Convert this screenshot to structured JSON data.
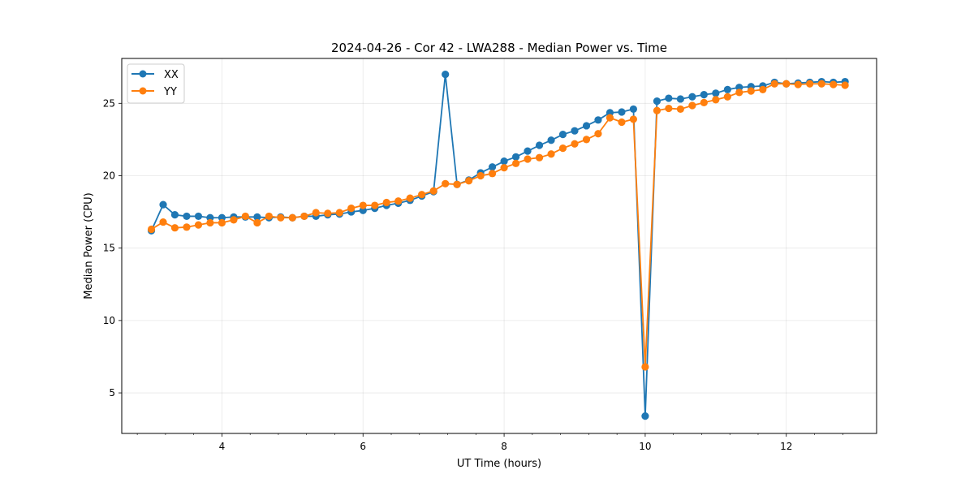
{
  "chart_data": {
    "type": "line",
    "title": "2024-04-26 - Cor 42 - LWA288 - Median Power vs. Time",
    "xlabel": "UT Time (hours)",
    "ylabel": "Median Power (CPU)",
    "xlim": [
      2.58,
      13.28
    ],
    "ylim": [
      2.2,
      28.1
    ],
    "xticks": [
      4,
      6,
      8,
      10,
      12
    ],
    "yticks": [
      5,
      10,
      15,
      20,
      25
    ],
    "xtick_labels": [
      "4",
      "6",
      "8",
      "10",
      "12"
    ],
    "ytick_labels": [
      "5",
      "10",
      "15",
      "20",
      "25"
    ],
    "grid": true,
    "legend_position": "upper-left",
    "marker": "circle",
    "x": [
      3.0,
      3.167,
      3.333,
      3.5,
      3.667,
      3.833,
      4.0,
      4.167,
      4.333,
      4.5,
      4.667,
      4.833,
      5.0,
      5.167,
      5.333,
      5.5,
      5.667,
      5.833,
      6.0,
      6.167,
      6.333,
      6.5,
      6.667,
      6.833,
      7.0,
      7.167,
      7.333,
      7.5,
      7.667,
      7.833,
      8.0,
      8.167,
      8.333,
      8.5,
      8.667,
      8.833,
      9.0,
      9.167,
      9.333,
      9.5,
      9.667,
      9.833,
      10.0,
      10.167,
      10.333,
      10.5,
      10.667,
      10.833,
      11.0,
      11.167,
      11.333,
      11.5,
      11.667,
      11.833,
      12.0,
      12.167,
      12.333,
      12.5,
      12.667,
      12.833
    ],
    "series": [
      {
        "name": "XX",
        "color": "#1f77b4",
        "values": [
          16.2,
          18.0,
          17.3,
          17.2,
          17.2,
          17.1,
          17.1,
          17.15,
          17.15,
          17.15,
          17.1,
          17.15,
          17.1,
          17.2,
          17.2,
          17.3,
          17.35,
          17.5,
          17.6,
          17.75,
          17.95,
          18.1,
          18.3,
          18.6,
          18.9,
          27.0,
          19.4,
          19.7,
          20.2,
          20.6,
          21.0,
          21.3,
          21.7,
          22.1,
          22.45,
          22.85,
          23.1,
          23.45,
          23.85,
          24.35,
          24.4,
          24.6,
          3.4,
          25.15,
          25.35,
          25.3,
          25.45,
          25.6,
          25.7,
          25.95,
          26.1,
          26.15,
          26.2,
          26.45,
          26.35,
          26.4,
          26.45,
          26.5,
          26.45,
          26.5
        ]
      },
      {
        "name": "YY",
        "color": "#ff7f0e",
        "values": [
          16.3,
          16.8,
          16.4,
          16.45,
          16.6,
          16.75,
          16.75,
          16.95,
          17.2,
          16.75,
          17.2,
          17.1,
          17.1,
          17.2,
          17.45,
          17.4,
          17.45,
          17.75,
          17.95,
          17.95,
          18.15,
          18.25,
          18.45,
          18.7,
          18.95,
          19.45,
          19.4,
          19.65,
          20.0,
          20.15,
          20.55,
          20.85,
          21.15,
          21.25,
          21.5,
          21.9,
          22.2,
          22.5,
          22.9,
          24.0,
          23.7,
          23.9,
          6.8,
          24.5,
          24.65,
          24.6,
          24.85,
          25.05,
          25.25,
          25.45,
          25.75,
          25.85,
          25.95,
          26.35,
          26.35,
          26.3,
          26.35,
          26.35,
          26.3,
          26.25
        ]
      }
    ]
  }
}
